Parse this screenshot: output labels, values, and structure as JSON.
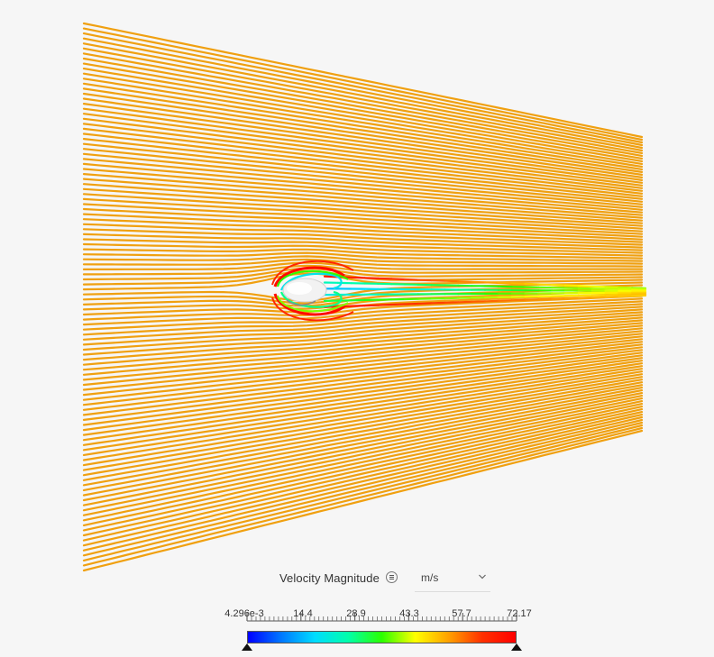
{
  "legend": {
    "title": "Velocity Magnitude",
    "menu_icon": "list-icon",
    "unit": "m/s",
    "unit_icon": "chevron-down-icon",
    "range_min": 0.004296,
    "range_max": 72.17,
    "tick_labels": [
      "4.296e-3",
      "14.4",
      "28.9",
      "43.3",
      "57.7",
      "72.17"
    ],
    "colormap": [
      "#0000ff",
      "#0078ff",
      "#00dcff",
      "#00ffaa",
      "#2bff00",
      "#ffff00",
      "#ffa000",
      "#ff3000",
      "#ff0000"
    ]
  },
  "viewport": {
    "background": "#f6f6f6",
    "freestream_color": "#f0a010"
  }
}
